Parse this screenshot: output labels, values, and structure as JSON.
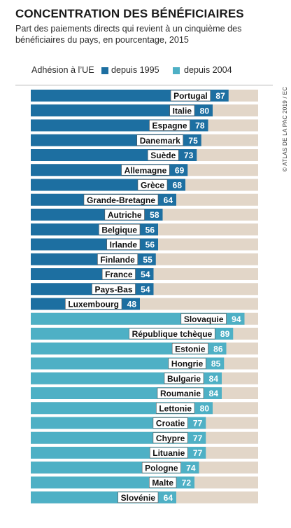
{
  "header": {
    "title": "CONCENTRATION DES BÉNÉFICIAIRES",
    "subtitle": "Part des paiements directs qui revient à un cinquième des bénéficiaires du pays, en pourcentage, 2015"
  },
  "legend": {
    "label": "Adhésion à l’UE",
    "items": [
      {
        "name": "depuis 1995",
        "color": "#1d6fa1"
      },
      {
        "name": "depuis 2004",
        "color": "#4eb0c5"
      }
    ]
  },
  "credit": "© ATLAS DE LA PAC 2019 / EC",
  "colors": {
    "remainder": "#e2d6c8",
    "series_1995": "#1d6fa1",
    "series_2004": "#4eb0c5"
  },
  "chart_data": {
    "type": "bar",
    "orientation": "horizontal",
    "stacked_to": 100,
    "title": "CONCENTRATION DES BÉNÉFICIAIRES",
    "xlim": [
      0,
      100
    ],
    "categories": [
      "Portugal",
      "Italie",
      "Espagne",
      "Danemark",
      "Suède",
      "Allemagne",
      "Grèce",
      "Grande-Bretagne",
      "Autriche",
      "Belgique",
      "Irlande",
      "Finlande",
      "France",
      "Pays-Bas",
      "Luxembourg",
      "Slovaquie",
      "République tchèque",
      "Estonie",
      "Hongrie",
      "Bulgarie",
      "Roumanie",
      "Lettonie",
      "Croatie",
      "Chypre",
      "Lituanie",
      "Pologne",
      "Malte",
      "Slovénie"
    ],
    "values": [
      87,
      80,
      78,
      75,
      73,
      69,
      68,
      64,
      58,
      56,
      56,
      55,
      54,
      54,
      48,
      94,
      89,
      86,
      85,
      84,
      84,
      80,
      77,
      77,
      77,
      74,
      72,
      64
    ],
    "groups": [
      "depuis 1995",
      "depuis 1995",
      "depuis 1995",
      "depuis 1995",
      "depuis 1995",
      "depuis 1995",
      "depuis 1995",
      "depuis 1995",
      "depuis 1995",
      "depuis 1995",
      "depuis 1995",
      "depuis 1995",
      "depuis 1995",
      "depuis 1995",
      "depuis 1995",
      "depuis 2004",
      "depuis 2004",
      "depuis 2004",
      "depuis 2004",
      "depuis 2004",
      "depuis 2004",
      "depuis 2004",
      "depuis 2004",
      "depuis 2004",
      "depuis 2004",
      "depuis 2004",
      "depuis 2004",
      "depuis 2004"
    ]
  }
}
